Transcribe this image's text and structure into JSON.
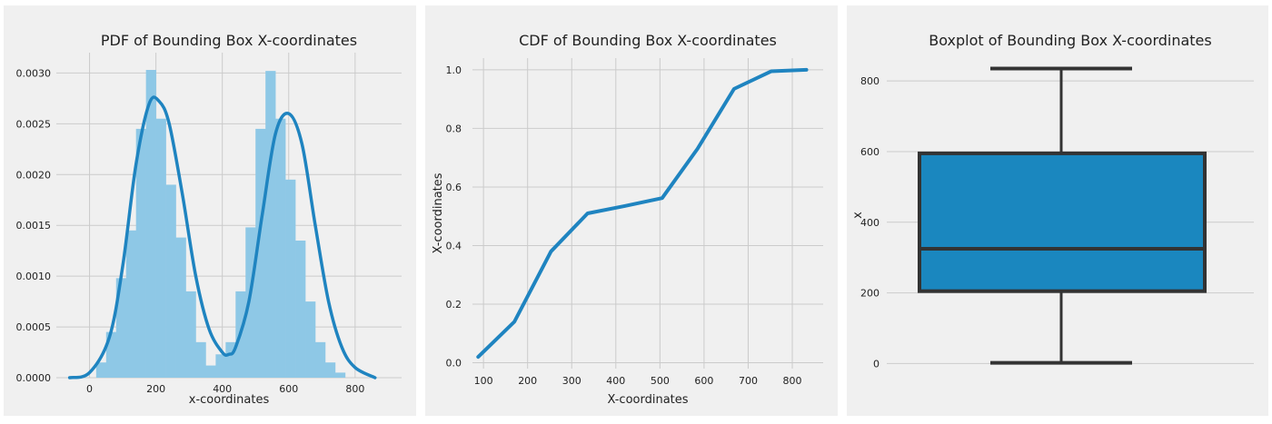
{
  "chart_data": [
    {
      "type": "histogram+kde",
      "title": "PDF of Bounding Box X-coordinates",
      "xlabel": "x-coordinates",
      "ylabel": "",
      "xlim": [
        -100,
        940
      ],
      "ylim": [
        0,
        0.0032
      ],
      "xticks": [
        "0",
        "200",
        "400",
        "600",
        "800"
      ],
      "yticks": [
        "0.0000",
        "0.0005",
        "0.0010",
        "0.0015",
        "0.0020",
        "0.0025",
        "0.0030"
      ],
      "bins": {
        "edges": [
          20,
          50,
          80,
          110,
          140,
          170,
          200,
          230,
          260,
          290,
          320,
          350,
          380,
          410,
          440,
          470,
          500,
          530,
          560,
          590,
          620,
          650,
          680,
          710,
          740,
          770
        ],
        "values": [
          0.00015,
          0.00045,
          0.00098,
          0.00145,
          0.00245,
          0.00303,
          0.00255,
          0.0019,
          0.00138,
          0.00085,
          0.00035,
          0.00012,
          0.00023,
          0.00035,
          0.00085,
          0.00148,
          0.00245,
          0.00302,
          0.00255,
          0.00195,
          0.00135,
          0.00075,
          0.00035,
          0.00015,
          5e-05
        ]
      },
      "kde": {
        "x": [
          -60,
          0,
          60,
          100,
          140,
          180,
          210,
          240,
          280,
          320,
          360,
          400,
          420,
          440,
          480,
          520,
          560,
          600,
          640,
          680,
          720,
          760,
          800,
          860
        ],
        "y": [
          0.0,
          5e-05,
          0.0004,
          0.0011,
          0.0021,
          0.0027,
          0.00272,
          0.0025,
          0.0018,
          0.001,
          0.00048,
          0.00025,
          0.00023,
          0.0003,
          0.00075,
          0.0016,
          0.0024,
          0.0026,
          0.0023,
          0.0015,
          0.00075,
          0.0003,
          0.0001,
          0.0
        ]
      },
      "colors": {
        "bar": "#8ec8e6",
        "line": "#1f84c0"
      }
    },
    {
      "type": "line",
      "title": "CDF of Bounding Box X-coordinates",
      "xlabel": "X-coordinates",
      "ylabel": "X-coordinates",
      "xlim": [
        75,
        870
      ],
      "ylim": [
        -0.02,
        1.04
      ],
      "xticks": [
        "100",
        "200",
        "300",
        "400",
        "500",
        "600",
        "700",
        "800"
      ],
      "yticks": [
        "0.0",
        "0.2",
        "0.4",
        "0.6",
        "0.8",
        "1.0"
      ],
      "series": [
        {
          "x": [
            88,
            170,
            253,
            336,
            420,
            505,
            585,
            668,
            752,
            832
          ],
          "y": [
            0.02,
            0.14,
            0.38,
            0.51,
            0.535,
            0.562,
            0.73,
            0.935,
            0.995,
            1.0
          ]
        }
      ],
      "colors": {
        "line": "#1f84c0"
      }
    },
    {
      "type": "boxplot",
      "title": "Boxplot of Bounding Box X-coordinates",
      "xlabel": "",
      "ylabel": "x",
      "ylim": [
        -40,
        880
      ],
      "yticks": [
        "0",
        "200",
        "400",
        "600",
        "800"
      ],
      "box": {
        "min": 2,
        "q1": 205,
        "median": 325,
        "q3": 595,
        "max": 835
      },
      "colors": {
        "box": "#1a87bf",
        "edge": "#333333"
      }
    }
  ]
}
